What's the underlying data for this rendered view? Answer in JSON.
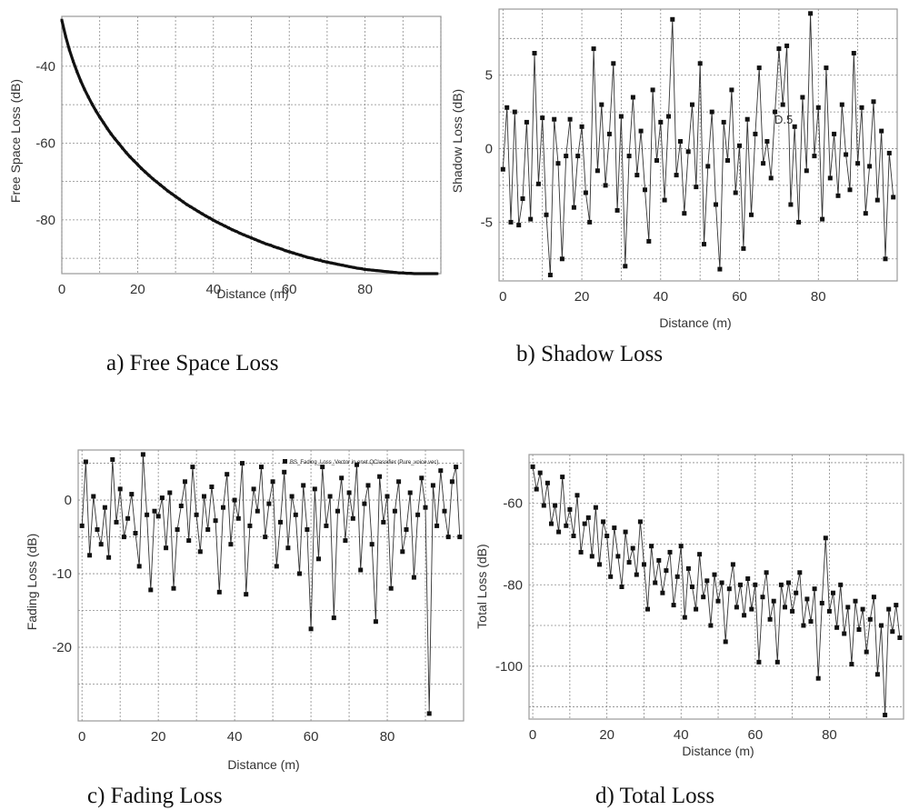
{
  "chart_data": [
    {
      "type": "line",
      "caption": "a) Free Space Loss",
      "xlabel": "Distance (m)",
      "ylabel": "Free Space Loss (dB)",
      "xlim": [
        0,
        100
      ],
      "ylim": [
        -94,
        -27
      ],
      "xticks": [
        "0",
        "20",
        "40",
        "60",
        "80"
      ],
      "yticks": [
        "-40",
        "-60",
        "-80"
      ],
      "grid": true,
      "markers": "small-dense",
      "series": [
        {
          "x": [
            0,
            1,
            2,
            3,
            4,
            5,
            6,
            7,
            8,
            9,
            10,
            11,
            12,
            13,
            14,
            15,
            16,
            17,
            18,
            19,
            20,
            21,
            22,
            23,
            24,
            25,
            26,
            27,
            28,
            29,
            30,
            31,
            32,
            33,
            34,
            35,
            36,
            37,
            38,
            39,
            40,
            41,
            42,
            43,
            44,
            45,
            46,
            47,
            48,
            49,
            50,
            51,
            52,
            53,
            54,
            55,
            56,
            57,
            58,
            59,
            60,
            61,
            62,
            63,
            64,
            65,
            66,
            67,
            68,
            69,
            70,
            71,
            72,
            73,
            74,
            75,
            76,
            77,
            78,
            79,
            80,
            81,
            82,
            83,
            84,
            85,
            86,
            87,
            88,
            89,
            90,
            91,
            92,
            93,
            94,
            95,
            96,
            97,
            98,
            99
          ],
          "values": [
            -28.0,
            -32.2,
            -35.7,
            -38.7,
            -41.4,
            -43.8,
            -46.0,
            -48.0,
            -49.9,
            -51.6,
            -53.2,
            -54.7,
            -56.2,
            -57.6,
            -58.9,
            -60.1,
            -61.3,
            -62.5,
            -63.6,
            -64.6,
            -65.6,
            -66.6,
            -67.5,
            -68.4,
            -69.3,
            -70.1,
            -70.9,
            -71.7,
            -72.5,
            -73.2,
            -73.9,
            -74.6,
            -75.3,
            -76.0,
            -76.6,
            -77.2,
            -77.8,
            -78.4,
            -79.0,
            -79.5,
            -80.1,
            -80.6,
            -81.1,
            -81.6,
            -82.1,
            -82.6,
            -83.0,
            -83.5,
            -83.9,
            -84.3,
            -84.7,
            -85.1,
            -85.5,
            -85.9,
            -86.3,
            -86.6,
            -87.0,
            -87.3,
            -87.6,
            -88.0,
            -88.3,
            -88.6,
            -88.9,
            -89.2,
            -89.5,
            -89.8,
            -90.0,
            -90.3,
            -90.5,
            -90.8,
            -91.0,
            -91.2,
            -91.4,
            -91.6,
            -91.8,
            -92.0,
            -92.2,
            -92.4,
            -92.6,
            -92.7,
            -92.9,
            -93.0,
            -93.1,
            -93.2,
            -93.3,
            -93.4,
            -93.5,
            -93.6,
            -93.7,
            -93.8,
            -93.8,
            -93.9,
            -93.9,
            -94.0,
            -94.0,
            -94.0,
            -94.0,
            -94.0,
            -94.0,
            -94.0
          ]
        }
      ]
    },
    {
      "type": "line",
      "caption": "b) Shadow Loss",
      "xlabel": "Distance (m)",
      "ylabel": "Shadow Loss (dB)",
      "xlim": [
        -1,
        100
      ],
      "ylim": [
        -9,
        9.5
      ],
      "xticks": [
        "0",
        "20",
        "40",
        "60",
        "80"
      ],
      "yticks": [
        "5",
        "0",
        "-5"
      ],
      "grid": true,
      "markers": "square",
      "annotation": "D.5",
      "series": [
        {
          "x": [
            0,
            1,
            2,
            3,
            4,
            5,
            6,
            7,
            8,
            9,
            10,
            11,
            12,
            13,
            14,
            15,
            16,
            17,
            18,
            19,
            20,
            21,
            22,
            23,
            24,
            25,
            26,
            27,
            28,
            29,
            30,
            31,
            32,
            33,
            34,
            35,
            36,
            37,
            38,
            39,
            40,
            41,
            42,
            43,
            44,
            45,
            46,
            47,
            48,
            49,
            50,
            51,
            52,
            53,
            54,
            55,
            56,
            57,
            58,
            59,
            60,
            61,
            62,
            63,
            64,
            65,
            66,
            67,
            68,
            69,
            70,
            71,
            72,
            73,
            74,
            75,
            76,
            77,
            78,
            79,
            80,
            81,
            82,
            83,
            84,
            85,
            86,
            87,
            88,
            89,
            90,
            91,
            92,
            93,
            94,
            95,
            96,
            97,
            98,
            99
          ],
          "values": [
            -1.4,
            2.8,
            -5.0,
            2.5,
            -5.2,
            -3.4,
            1.8,
            -4.8,
            6.5,
            -2.4,
            2.1,
            -4.5,
            -8.6,
            2.0,
            -1.0,
            -7.5,
            -0.5,
            2.0,
            -4.0,
            -0.5,
            1.5,
            -3.0,
            -5.0,
            6.8,
            -1.5,
            3.0,
            -2.5,
            1.0,
            5.8,
            -4.2,
            2.2,
            -8.0,
            -0.5,
            3.5,
            -1.8,
            1.2,
            -2.8,
            -6.3,
            4.0,
            -0.8,
            1.8,
            -3.5,
            2.2,
            8.8,
            -1.8,
            0.5,
            -4.4,
            -0.2,
            3.0,
            -2.6,
            5.8,
            -6.5,
            -1.2,
            2.5,
            -3.8,
            -8.2,
            1.8,
            -0.8,
            4.0,
            -3.0,
            0.2,
            -6.8,
            2.0,
            -4.5,
            1.0,
            5.5,
            -1.0,
            0.5,
            -2.0,
            2.5,
            6.8,
            3.0,
            7.0,
            -3.8,
            1.5,
            -5.0,
            3.5,
            -1.5,
            9.2,
            -0.5,
            2.8,
            -4.8,
            5.5,
            -2.0,
            1.0,
            -3.2,
            3.0,
            -0.4,
            -2.8,
            6.5,
            -1.0,
            2.8,
            -4.4,
            -1.2,
            3.2,
            -3.5,
            1.2,
            -7.5,
            -0.3,
            -3.3
          ]
        }
      ]
    },
    {
      "type": "line",
      "caption": "c) Fading Loss",
      "xlabel": "Distance (m)",
      "ylabel": "Fading Loss (dB)",
      "xlim": [
        -1,
        100
      ],
      "ylim": [
        -30,
        6.8
      ],
      "xticks": [
        "0",
        "20",
        "40",
        "60",
        "80"
      ],
      "yticks": [
        "0",
        "-10",
        "-20"
      ],
      "grid": true,
      "markers": "square",
      "legend": "BS_Fading_Loss_Vector in enet.QClassifier (Pure_voice.vec)",
      "legend_loc": "top-right",
      "series": [
        {
          "name": "BS_Fading_Loss_Vector in enet.QClassifier (Pure_voice.vec)",
          "x": [
            0,
            1,
            2,
            3,
            4,
            5,
            6,
            7,
            8,
            9,
            10,
            11,
            12,
            13,
            14,
            15,
            16,
            17,
            18,
            19,
            20,
            21,
            22,
            23,
            24,
            25,
            26,
            27,
            28,
            29,
            30,
            31,
            32,
            33,
            34,
            35,
            36,
            37,
            38,
            39,
            40,
            41,
            42,
            43,
            44,
            45,
            46,
            47,
            48,
            49,
            50,
            51,
            52,
            53,
            54,
            55,
            56,
            57,
            58,
            59,
            60,
            61,
            62,
            63,
            64,
            65,
            66,
            67,
            68,
            69,
            70,
            71,
            72,
            73,
            74,
            75,
            76,
            77,
            78,
            79,
            80,
            81,
            82,
            83,
            84,
            85,
            86,
            87,
            88,
            89,
            90,
            91,
            92,
            93,
            94,
            95,
            96,
            97,
            98,
            99
          ],
          "values": [
            -3.5,
            5.2,
            -7.5,
            0.5,
            -4.0,
            -6.0,
            -1.0,
            -7.8,
            5.5,
            -3.0,
            1.5,
            -5.0,
            -2.5,
            0.8,
            -4.5,
            -9.0,
            6.2,
            -2.0,
            -12.2,
            -1.5,
            -2.2,
            0.3,
            -6.5,
            1.0,
            -12.0,
            -4.0,
            -0.8,
            2.5,
            -5.5,
            4.5,
            -2.0,
            -7.0,
            0.5,
            -4.0,
            1.8,
            -2.8,
            -12.5,
            -1.0,
            3.5,
            -6.0,
            0.0,
            -2.5,
            5.0,
            -12.8,
            -3.5,
            1.5,
            -1.5,
            4.5,
            -5.0,
            -0.5,
            2.5,
            -9.0,
            -3.0,
            3.8,
            -6.5,
            0.5,
            -2.0,
            -10.0,
            2.0,
            -4.0,
            -17.5,
            1.5,
            -8.0,
            4.5,
            -3.5,
            0.5,
            -16.0,
            -1.5,
            3.0,
            -5.5,
            1.0,
            -2.5,
            4.8,
            -9.5,
            -0.5,
            2.0,
            -6.0,
            -16.5,
            3.2,
            -3.0,
            0.5,
            -12.0,
            -1.5,
            2.5,
            -7.0,
            -4.0,
            1.0,
            -10.5,
            -2.0,
            3.0,
            -1.0,
            -29.0,
            2.0,
            -3.5,
            4.0,
            -1.5,
            -5.0,
            2.5,
            4.5,
            -5.0
          ]
        }
      ]
    },
    {
      "type": "line",
      "caption": "d) Total Loss",
      "xlabel": "Distance (m)",
      "ylabel": "Total Loss (dB)",
      "xlim": [
        -1,
        100
      ],
      "ylim": [
        -113,
        -48
      ],
      "xticks": [
        "0",
        "20",
        "40",
        "60",
        "80"
      ],
      "yticks": [
        "-60",
        "-80",
        "-100"
      ],
      "grid": true,
      "markers": "square",
      "series": [
        {
          "x": [
            0,
            1,
            2,
            3,
            4,
            5,
            6,
            7,
            8,
            9,
            10,
            11,
            12,
            13,
            14,
            15,
            16,
            17,
            18,
            19,
            20,
            21,
            22,
            23,
            24,
            25,
            26,
            27,
            28,
            29,
            30,
            31,
            32,
            33,
            34,
            35,
            36,
            37,
            38,
            39,
            40,
            41,
            42,
            43,
            44,
            45,
            46,
            47,
            48,
            49,
            50,
            51,
            52,
            53,
            54,
            55,
            56,
            57,
            58,
            59,
            60,
            61,
            62,
            63,
            64,
            65,
            66,
            67,
            68,
            69,
            70,
            71,
            72,
            73,
            74,
            75,
            76,
            77,
            78,
            79,
            80,
            81,
            82,
            83,
            84,
            85,
            86,
            87,
            88,
            89,
            90,
            91,
            92,
            93,
            94,
            95,
            96,
            97,
            98,
            99
          ],
          "values": [
            -51.0,
            -56.5,
            -52.5,
            -60.5,
            -55.0,
            -65.0,
            -60.5,
            -67.0,
            -53.5,
            -65.5,
            -61.5,
            -68.0,
            -58.0,
            -72.0,
            -65.0,
            -63.5,
            -73.0,
            -61.0,
            -75.0,
            -64.5,
            -68.0,
            -78.0,
            -66.0,
            -73.0,
            -80.5,
            -67.0,
            -74.5,
            -71.0,
            -77.5,
            -64.5,
            -75.0,
            -86.0,
            -70.5,
            -79.5,
            -74.0,
            -82.0,
            -76.5,
            -72.0,
            -85.0,
            -78.0,
            -70.5,
            -88.0,
            -76.0,
            -80.5,
            -86.0,
            -72.5,
            -83.0,
            -79.0,
            -90.0,
            -77.5,
            -84.0,
            -79.5,
            -94.0,
            -81.0,
            -75.0,
            -85.5,
            -80.0,
            -87.5,
            -78.5,
            -86.0,
            -80.0,
            -99.0,
            -83.0,
            -77.0,
            -88.5,
            -84.0,
            -99.0,
            -80.0,
            -85.5,
            -79.5,
            -86.5,
            -82.0,
            -77.0,
            -90.0,
            -83.5,
            -89.0,
            -81.0,
            -103.0,
            -84.5,
            -68.5,
            -86.5,
            -82.0,
            -90.5,
            -80.0,
            -92.0,
            -85.5,
            -99.5,
            -84.0,
            -91.0,
            -86.0,
            -96.5,
            -88.5,
            -83.0,
            -102.0,
            -90.0,
            -112.0,
            -86.0,
            -91.5,
            -85.0,
            -93.0
          ]
        }
      ]
    }
  ]
}
